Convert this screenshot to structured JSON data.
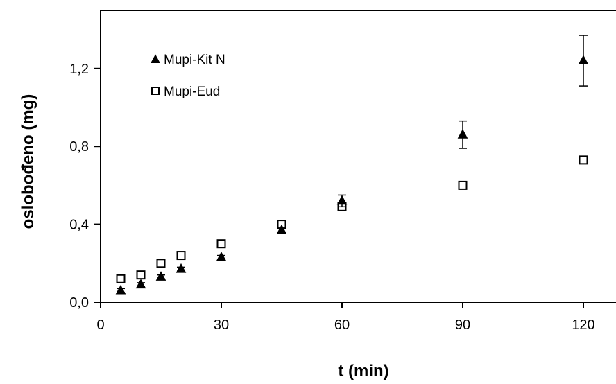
{
  "chart_data": {
    "type": "scatter",
    "title": "",
    "xlabel": "t (min)",
    "ylabel": "oslobođeno (mg)",
    "xlim": [
      0,
      128
    ],
    "ylim": [
      0,
      1.5
    ],
    "x_ticks": [
      0,
      30,
      60,
      90,
      120
    ],
    "x_tick_labels": [
      "0",
      "30",
      "60",
      "90",
      "120"
    ],
    "y_ticks": [
      0,
      0.4,
      0.8,
      1.2
    ],
    "y_tick_labels": [
      "0,0",
      "0,4",
      "0,8",
      "1,2"
    ],
    "grid": false,
    "legend_position": "top-left",
    "series": [
      {
        "name": "Mupi-Kit N",
        "marker": "filled-triangle",
        "color": "#000000",
        "x": [
          5,
          10,
          15,
          20,
          30,
          45,
          60,
          90,
          120
        ],
        "y": [
          0.06,
          0.09,
          0.13,
          0.17,
          0.23,
          0.37,
          0.52,
          0.86,
          1.24
        ],
        "error": [
          0.01,
          0.01,
          0.01,
          0.01,
          0.01,
          0.01,
          0.03,
          0.07,
          0.13
        ]
      },
      {
        "name": "Mupi-Eud",
        "marker": "open-square",
        "color": "#000000",
        "x": [
          5,
          10,
          15,
          20,
          30,
          45,
          60,
          90,
          120
        ],
        "y": [
          0.12,
          0.14,
          0.2,
          0.24,
          0.3,
          0.4,
          0.49,
          0.6,
          0.73
        ]
      }
    ]
  }
}
